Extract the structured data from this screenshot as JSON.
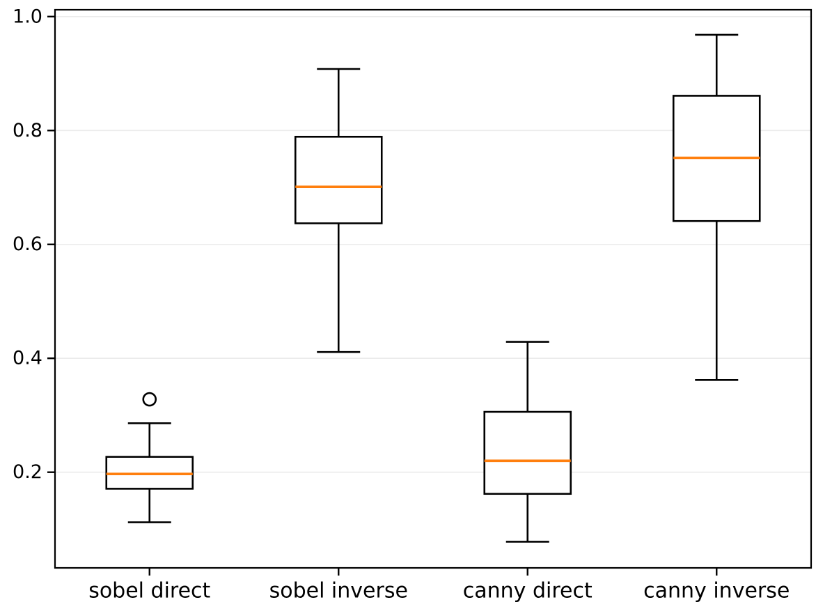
{
  "chart_data": {
    "type": "boxplot",
    "title": "",
    "xlabel": "",
    "ylabel": "",
    "categories": [
      "sobel direct",
      "sobel inverse",
      "canny direct",
      "canny inverse"
    ],
    "series": [
      {
        "name": "sobel direct",
        "whisker_low": 0.112,
        "q1": 0.171,
        "median": 0.197,
        "q3": 0.227,
        "whisker_high": 0.286,
        "outliers": [
          0.328
        ]
      },
      {
        "name": "sobel inverse",
        "whisker_low": 0.411,
        "q1": 0.637,
        "median": 0.701,
        "q3": 0.789,
        "whisker_high": 0.908,
        "outliers": []
      },
      {
        "name": "canny direct",
        "whisker_low": 0.078,
        "q1": 0.162,
        "median": 0.22,
        "q3": 0.306,
        "whisker_high": 0.429,
        "outliers": []
      },
      {
        "name": "canny inverse",
        "whisker_low": 0.362,
        "q1": 0.641,
        "median": 0.752,
        "q3": 0.861,
        "whisker_high": 0.968,
        "outliers": []
      }
    ],
    "ylim": [
      0.032,
      1.012
    ],
    "yticks": [
      0.2,
      0.4,
      0.6,
      0.8,
      1.0
    ],
    "ytick_labels": [
      "0.2",
      "0.4",
      "0.6",
      "0.8",
      "1.0"
    ],
    "grid": true,
    "legend": null,
    "colors": {
      "box_edge": "#000000",
      "median": "#ff7f0e",
      "grid": "#ebebeb",
      "background": "#ffffff",
      "tick_label": "#000000"
    }
  }
}
